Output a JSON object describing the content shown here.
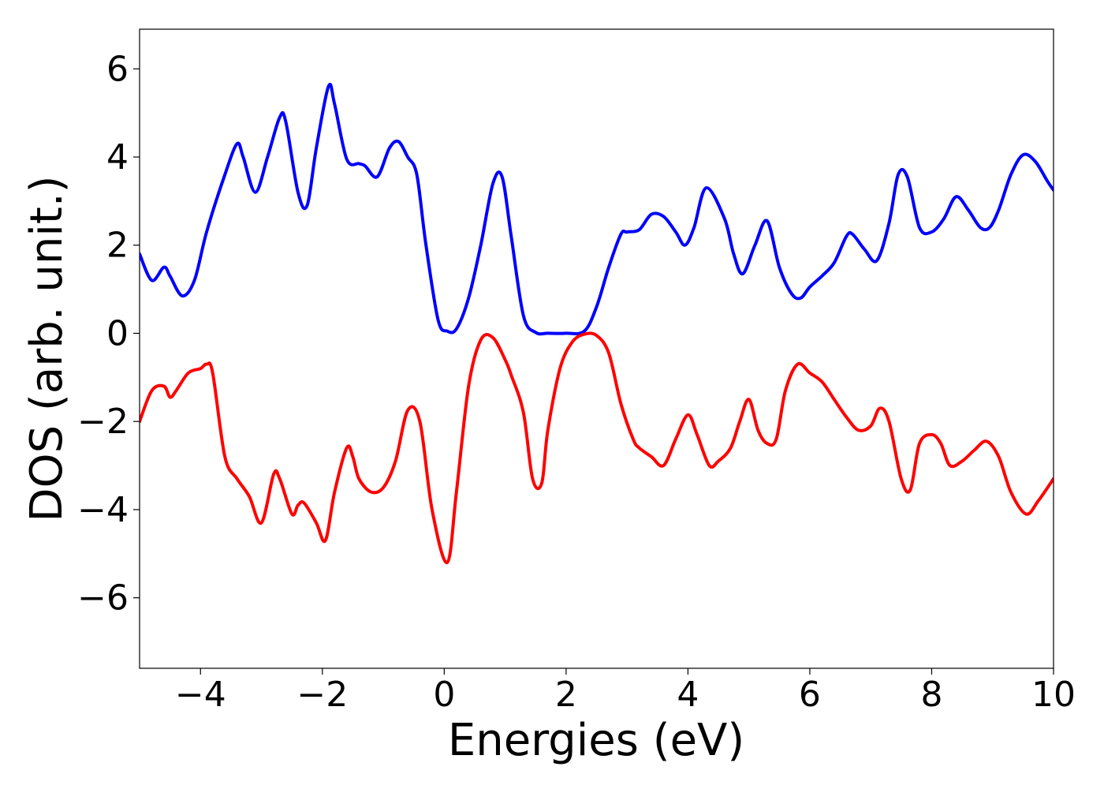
{
  "chart_data": {
    "type": "line",
    "xlabel": "Energies (eV)",
    "ylabel": "DOS (arb. unit.)",
    "xlim": [
      -5,
      10
    ],
    "ylim": [
      -7.6,
      6.9
    ],
    "xticks": [
      -4,
      -2,
      0,
      2,
      4,
      6,
      8,
      10
    ],
    "xtick_labels": [
      "−4",
      "−2",
      "0",
      "2",
      "4",
      "6",
      "8",
      "10"
    ],
    "yticks": [
      6,
      4,
      2,
      0,
      -2,
      -4,
      -6
    ],
    "ytick_labels": [
      "6",
      "4",
      "2",
      "0",
      "−2",
      "−4",
      "−6"
    ],
    "grid": false,
    "legend": "none",
    "series": [
      {
        "color": "#0000ff",
        "x": [
          -5.0,
          -4.8,
          -4.6,
          -4.5,
          -4.3,
          -4.1,
          -3.9,
          -3.6,
          -3.4,
          -3.3,
          -3.1,
          -2.9,
          -2.7,
          -2.6,
          -2.4,
          -2.25,
          -2.1,
          -1.9,
          -1.8,
          -1.6,
          -1.4,
          -1.3,
          -1.1,
          -0.9,
          -0.75,
          -0.6,
          -0.45,
          -0.3,
          -0.1,
          0.05,
          0.2,
          0.4,
          0.6,
          0.8,
          0.95,
          1.1,
          1.3,
          1.5,
          1.7,
          2.0,
          2.3,
          2.5,
          2.7,
          2.9,
          3.0,
          3.2,
          3.4,
          3.6,
          3.8,
          3.95,
          4.1,
          4.3,
          4.6,
          4.75,
          4.9,
          5.1,
          5.3,
          5.5,
          5.7,
          5.85,
          6.0,
          6.2,
          6.4,
          6.6,
          6.7,
          6.9,
          7.1,
          7.3,
          7.45,
          7.6,
          7.8,
          8.0,
          8.2,
          8.4,
          8.6,
          8.8,
          8.95,
          9.1,
          9.3,
          9.5,
          9.7,
          9.9,
          10.0
        ],
        "y": [
          1.8,
          1.2,
          1.5,
          1.3,
          0.85,
          1.2,
          2.3,
          3.6,
          4.3,
          4.0,
          3.2,
          4.0,
          4.9,
          4.8,
          3.2,
          2.9,
          4.2,
          5.6,
          5.2,
          3.95,
          3.85,
          3.8,
          3.55,
          4.2,
          4.35,
          4.0,
          3.6,
          2.0,
          0.3,
          0.05,
          0.1,
          0.8,
          2.0,
          3.4,
          3.55,
          2.2,
          0.4,
          0.02,
          0.0,
          0.0,
          0.05,
          0.6,
          1.5,
          2.25,
          2.3,
          2.35,
          2.7,
          2.65,
          2.3,
          2.0,
          2.4,
          3.3,
          2.6,
          1.8,
          1.35,
          2.0,
          2.55,
          1.5,
          0.9,
          0.8,
          1.05,
          1.3,
          1.6,
          2.2,
          2.25,
          1.9,
          1.65,
          2.5,
          3.6,
          3.55,
          2.4,
          2.3,
          2.6,
          3.1,
          2.8,
          2.4,
          2.4,
          2.8,
          3.6,
          4.05,
          3.9,
          3.45,
          3.25
        ]
      },
      {
        "color": "#ff0000",
        "x": [
          -5.0,
          -4.8,
          -4.6,
          -4.5,
          -4.4,
          -4.2,
          -4.0,
          -3.9,
          -3.8,
          -3.6,
          -3.4,
          -3.2,
          -3.0,
          -2.8,
          -2.7,
          -2.5,
          -2.4,
          -2.3,
          -2.1,
          -1.95,
          -1.8,
          -1.6,
          -1.5,
          -1.4,
          -1.2,
          -1.0,
          -0.8,
          -0.6,
          -0.4,
          -0.2,
          0.05,
          0.2,
          0.4,
          0.6,
          0.8,
          1.0,
          1.1,
          1.3,
          1.45,
          1.6,
          1.7,
          1.9,
          2.1,
          2.3,
          2.5,
          2.7,
          2.9,
          3.1,
          3.2,
          3.4,
          3.6,
          3.8,
          4.0,
          4.15,
          4.35,
          4.5,
          4.7,
          4.85,
          5.0,
          5.15,
          5.3,
          5.45,
          5.6,
          5.8,
          6.0,
          6.2,
          6.4,
          6.6,
          6.8,
          7.0,
          7.15,
          7.3,
          7.5,
          7.65,
          7.8,
          8.0,
          8.15,
          8.3,
          8.5,
          8.7,
          8.9,
          9.1,
          9.3,
          9.55,
          9.75,
          10.0
        ],
        "y": [
          -2.0,
          -1.3,
          -1.2,
          -1.45,
          -1.3,
          -0.9,
          -0.8,
          -0.7,
          -0.9,
          -2.8,
          -3.3,
          -3.7,
          -4.3,
          -3.2,
          -3.3,
          -4.1,
          -3.9,
          -3.85,
          -4.3,
          -4.7,
          -3.6,
          -2.6,
          -2.8,
          -3.3,
          -3.6,
          -3.5,
          -2.9,
          -1.75,
          -2.0,
          -4.0,
          -5.2,
          -3.6,
          -1.2,
          -0.15,
          -0.1,
          -0.6,
          -0.95,
          -1.8,
          -3.3,
          -3.4,
          -2.2,
          -0.8,
          -0.2,
          -0.02,
          -0.05,
          -0.45,
          -1.6,
          -2.4,
          -2.6,
          -2.8,
          -3.0,
          -2.4,
          -1.85,
          -2.3,
          -3.0,
          -2.9,
          -2.6,
          -2.0,
          -1.5,
          -2.2,
          -2.5,
          -2.4,
          -1.3,
          -0.7,
          -0.9,
          -1.1,
          -1.5,
          -1.9,
          -2.2,
          -2.1,
          -1.7,
          -2.0,
          -3.3,
          -3.55,
          -2.5,
          -2.3,
          -2.5,
          -3.0,
          -2.9,
          -2.65,
          -2.45,
          -2.8,
          -3.6,
          -4.1,
          -3.8,
          -3.3
        ]
      }
    ]
  }
}
